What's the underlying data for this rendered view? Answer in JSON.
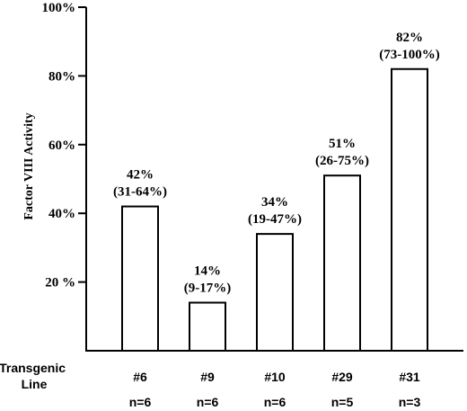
{
  "chart_data": {
    "type": "bar",
    "title": "",
    "ylabel": "Factor VIII Activity",
    "xlabel": "Transgenic Line",
    "xlabel_lines": [
      "Transgenic",
      "Line"
    ],
    "ylim": [
      0,
      100
    ],
    "yticks": [
      20,
      40,
      60,
      80,
      100
    ],
    "ytick_labels": [
      "20 %",
      "40%",
      "60%",
      "80%",
      "100%"
    ],
    "categories": [
      "#6",
      "#9",
      "#10",
      "#29",
      "#31"
    ],
    "values": [
      42,
      14,
      34,
      51,
      82
    ],
    "value_labels": [
      "42%",
      "14%",
      "34%",
      "51%",
      "82%"
    ],
    "range_labels": [
      "(31-64%)",
      "(9-17%)",
      "(19-47%)",
      "(26-75%)",
      "(73-100%)"
    ],
    "n_labels": [
      "n=6",
      "n=6",
      "n=6",
      "n=5",
      "n=3"
    ],
    "grid": false
  }
}
